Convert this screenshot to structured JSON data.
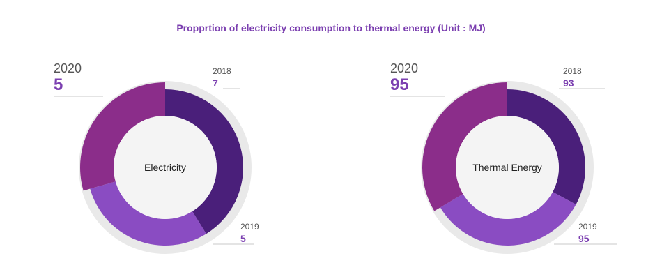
{
  "title": "Propprtion of electricity consumption to thermal energy (Unit : MJ)",
  "colors": {
    "title": "#7b3fb0",
    "y2018": "#4a1f7a",
    "y2019": "#8a4cc2",
    "y2020": "#8b2d8a",
    "ring_bg": "#e9e9e9",
    "center": "#f4f4f4"
  },
  "chart_data": [
    {
      "type": "pie",
      "center_label": "Electricity",
      "categories": [
        "2018",
        "2019",
        "2020"
      ],
      "values": [
        7,
        5,
        5
      ]
    },
    {
      "type": "pie",
      "center_label": "Thermal Energy",
      "categories": [
        "2018",
        "2019",
        "2020"
      ],
      "values": [
        93,
        95,
        95
      ]
    }
  ]
}
